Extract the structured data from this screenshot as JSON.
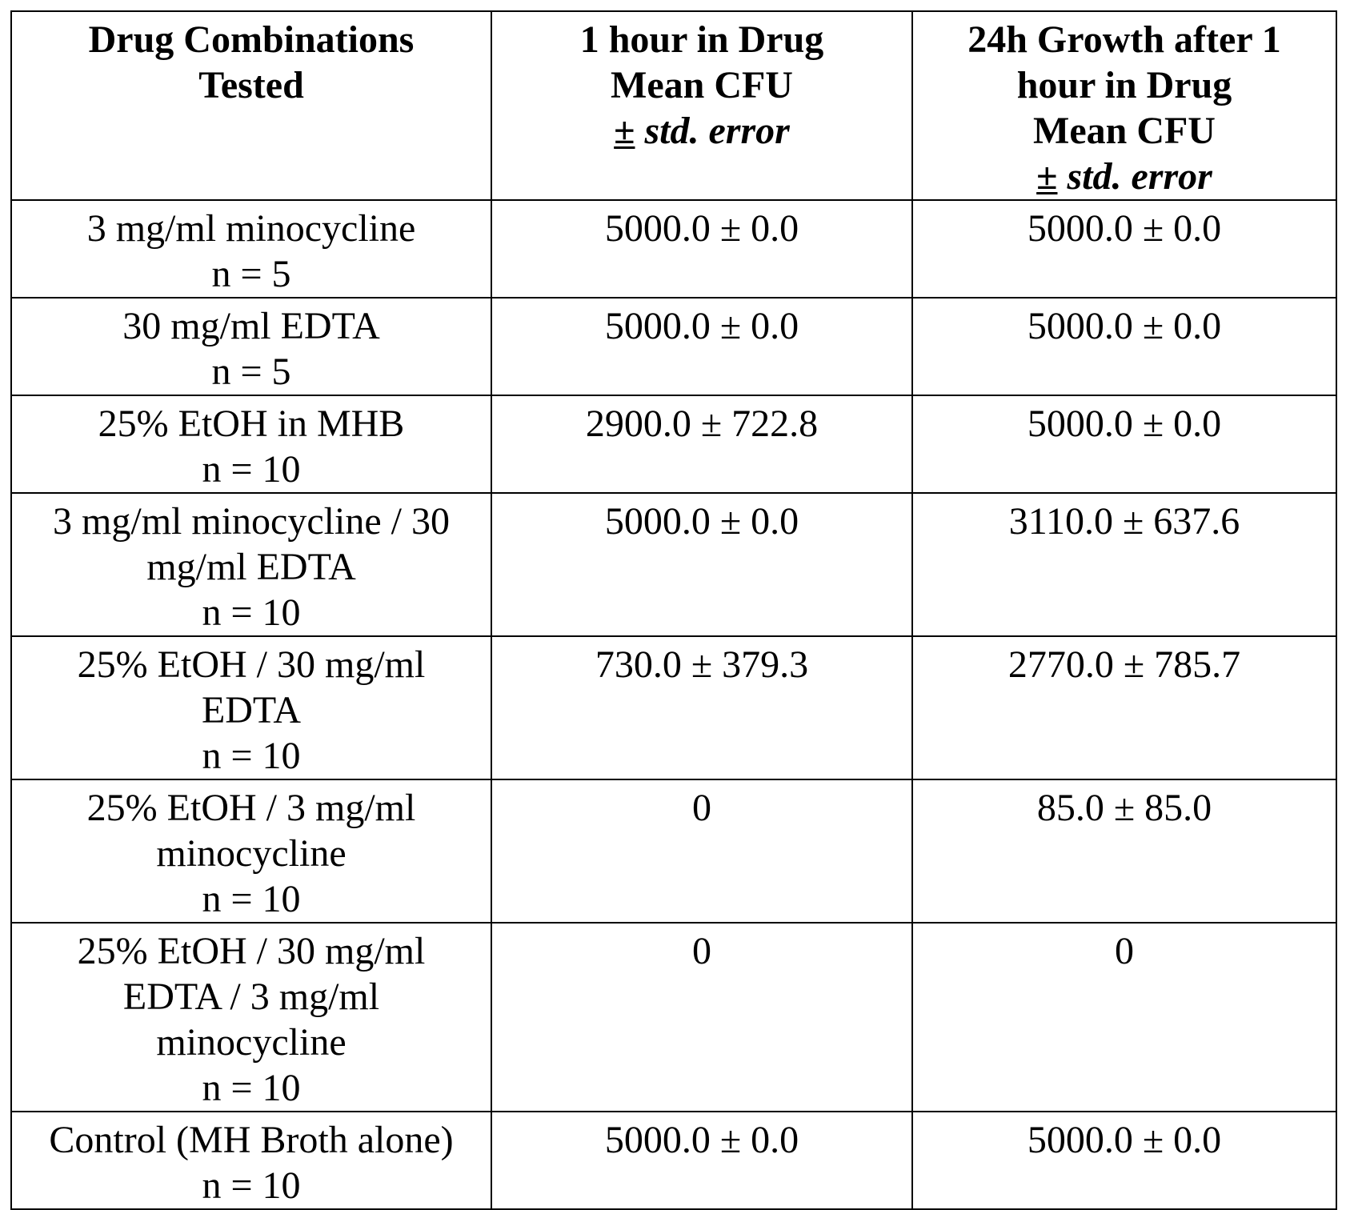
{
  "table": {
    "headers": [
      {
        "lines": [
          "Drug Combinations",
          "Tested"
        ]
      },
      {
        "lines": [
          "1 hour in Drug",
          "Mean CFU"
        ],
        "pm": "±",
        "err": " std. error"
      },
      {
        "lines": [
          "24h Growth after 1",
          "hour in Drug",
          "Mean CFU"
        ],
        "pm": "±",
        "err": " std. error"
      }
    ],
    "rows": [
      {
        "drug": [
          "3 mg/ml minocycline",
          "n = 5"
        ],
        "one_hour": "5000.0 ± 0.0",
        "growth_24h": "5000.0 ± 0.0"
      },
      {
        "drug": [
          "30 mg/ml EDTA",
          "n = 5"
        ],
        "one_hour": "5000.0 ± 0.0",
        "growth_24h": "5000.0 ± 0.0"
      },
      {
        "drug": [
          "25% EtOH in MHB",
          "n = 10"
        ],
        "one_hour": "2900.0 ± 722.8",
        "growth_24h": "5000.0 ± 0.0"
      },
      {
        "drug": [
          "3 mg/ml minocycline / 30",
          "mg/ml EDTA",
          "n = 10"
        ],
        "one_hour": "5000.0 ± 0.0",
        "growth_24h": "3110.0 ± 637.6"
      },
      {
        "drug": [
          "25% EtOH / 30 mg/ml",
          "EDTA",
          "n = 10"
        ],
        "one_hour": "730.0 ± 379.3",
        "growth_24h": "2770.0 ± 785.7"
      },
      {
        "drug": [
          "25% EtOH / 3 mg/ml",
          "minocycline",
          "n = 10"
        ],
        "one_hour": "0",
        "growth_24h": "85.0 ± 85.0"
      },
      {
        "drug": [
          "25% EtOH / 30 mg/ml",
          "EDTA / 3 mg/ml",
          "minocycline",
          "n = 10"
        ],
        "one_hour": "0",
        "growth_24h": "0"
      },
      {
        "drug": [
          "Control (MH Broth alone)",
          "n = 10"
        ],
        "one_hour": "5000.0 ± 0.0",
        "growth_24h": "5000.0 ± 0.0"
      }
    ]
  }
}
